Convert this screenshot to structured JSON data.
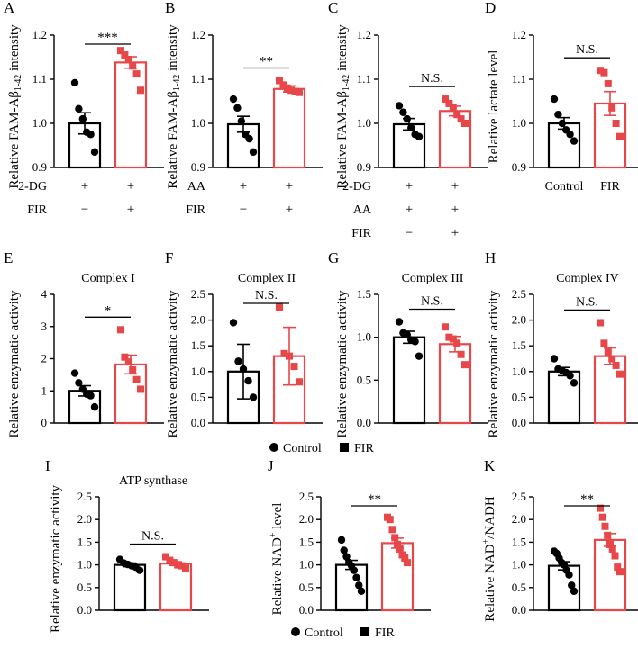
{
  "colors": {
    "control": "#000000",
    "fir": "#e8474a"
  },
  "legend": {
    "control": "Control",
    "fir": "FIR"
  },
  "chart_data": [
    {
      "type": "bar",
      "label": "A",
      "title": "",
      "ylabel": "Relative FAM-Aβ1-42 intensity",
      "ylabel_main": "Relative FAM-Aβ",
      "ylabel_sub": "1-42",
      "ylabel_tail": " intensity",
      "ylim": [
        0.9,
        1.2
      ],
      "yticks": [
        "0.9",
        "1.0",
        "1.1",
        "1.2"
      ],
      "significance": "***",
      "treatments": [
        {
          "name": "2-DG",
          "values": [
            "+",
            "+"
          ]
        },
        {
          "name": "FIR",
          "values": [
            "−",
            "+"
          ]
        }
      ],
      "series": [
        {
          "name": "Control",
          "mean": 1.0,
          "sem": 0.024,
          "points": [
            1.092,
            1.033,
            1.01,
            0.98,
            0.975,
            0.935
          ]
        },
        {
          "name": "FIR",
          "mean": 1.138,
          "sem": 0.013,
          "points": [
            1.165,
            1.155,
            1.145,
            1.13,
            1.112,
            1.075
          ]
        }
      ]
    },
    {
      "type": "bar",
      "label": "B",
      "title": "",
      "ylabel": "Relative FAM-Aβ1-42 intensity",
      "ylabel_main": "Relative FAM-Aβ",
      "ylabel_sub": "1-42",
      "ylabel_tail": " intensity",
      "ylim": [
        0.9,
        1.2
      ],
      "yticks": [
        "0.9",
        "1.0",
        "1.1",
        "1.2"
      ],
      "significance": "**",
      "treatments": [
        {
          "name": "AA",
          "values": [
            "+",
            "+"
          ]
        },
        {
          "name": "FIR",
          "values": [
            "−",
            "+"
          ]
        }
      ],
      "series": [
        {
          "name": "Control",
          "mean": 0.998,
          "sem": 0.018,
          "points": [
            1.055,
            1.035,
            1.005,
            0.975,
            0.965,
            0.935
          ]
        },
        {
          "name": "FIR",
          "mean": 1.078,
          "sem": 0.007,
          "points": [
            1.097,
            1.087,
            1.08,
            1.075,
            1.072,
            1.07
          ]
        }
      ]
    },
    {
      "type": "bar",
      "label": "C",
      "title": "",
      "ylabel": "Relative FAM-Aβ1-42 intensity",
      "ylabel_main": "Relative FAM-Aβ",
      "ylabel_sub": "1-42",
      "ylabel_tail": " intensity",
      "ylim": [
        0.9,
        1.2
      ],
      "yticks": [
        "0.9",
        "1.0",
        "1.1",
        "1.2"
      ],
      "significance": "N.S.",
      "treatments": [
        {
          "name": "2-DG",
          "values": [
            "+",
            "+"
          ]
        },
        {
          "name": "AA",
          "values": [
            "+",
            "+"
          ]
        },
        {
          "name": "FIR",
          "values": [
            "−",
            "+"
          ]
        }
      ],
      "series": [
        {
          "name": "Control",
          "mean": 0.998,
          "sem": 0.013,
          "points": [
            1.04,
            1.025,
            1.01,
            0.99,
            0.975,
            0.97
          ]
        },
        {
          "name": "FIR",
          "mean": 1.028,
          "sem": 0.011,
          "points": [
            1.055,
            1.045,
            1.035,
            1.02,
            1.01,
            1.0
          ]
        }
      ]
    },
    {
      "type": "bar",
      "label": "D",
      "title": "",
      "ylabel": "Relative lactate level",
      "ylim": [
        0.9,
        1.2
      ],
      "yticks": [
        "0.9",
        "1.0",
        "1.1",
        "1.2"
      ],
      "significance": "N.S.",
      "categories": [
        "Control",
        "FIR"
      ],
      "series": [
        {
          "name": "Control",
          "mean": 1.0,
          "sem": 0.013,
          "points": [
            1.055,
            1.02,
            1.0,
            0.985,
            0.975,
            0.96
          ]
        },
        {
          "name": "FIR",
          "mean": 1.045,
          "sem": 0.027,
          "points": [
            1.12,
            1.115,
            1.09,
            1.035,
            1.0,
            0.97
          ]
        }
      ]
    },
    {
      "type": "bar",
      "label": "E",
      "title": "Complex I",
      "ylabel": "Relative enzymatic activity",
      "ylim": [
        0,
        4
      ],
      "yticks": [
        "0",
        "1",
        "2",
        "3",
        "4"
      ],
      "significance": "*",
      "series": [
        {
          "name": "Control",
          "mean": 1.0,
          "sem": 0.16,
          "points": [
            1.55,
            1.25,
            1.05,
            0.9,
            0.85,
            0.5
          ]
        },
        {
          "name": "FIR",
          "mean": 1.82,
          "sem": 0.29,
          "points": [
            2.9,
            2.05,
            1.9,
            1.65,
            1.35,
            1.05
          ]
        }
      ]
    },
    {
      "type": "bar",
      "label": "F",
      "title": "Complex II",
      "ylabel": "Relative enzymatic activity",
      "ylim": [
        0,
        2.5
      ],
      "yticks": [
        "0.0",
        "0.5",
        "1.0",
        "1.5",
        "2.0",
        "2.5"
      ],
      "significance": "N.S.",
      "series": [
        {
          "name": "Control",
          "mean": 1.0,
          "sem": 0.53,
          "points": [
            1.95,
            1.2,
            1.05,
            0.82,
            0.5
          ]
        },
        {
          "name": "FIR",
          "mean": 1.3,
          "sem": 0.56,
          "points": [
            2.25,
            1.35,
            1.3,
            1.1,
            0.8
          ]
        }
      ]
    },
    {
      "type": "bar",
      "label": "G",
      "title": "Complex III",
      "ylabel": "Relative enzymatic activity",
      "ylim": [
        0,
        1.5
      ],
      "yticks": [
        "0.0",
        "0.5",
        "1.0",
        "1.5"
      ],
      "significance": "N.S.",
      "series": [
        {
          "name": "Control",
          "mean": 1.0,
          "sem": 0.07,
          "points": [
            1.18,
            1.05,
            1.03,
            0.97,
            0.95,
            0.78
          ]
        },
        {
          "name": "FIR",
          "mean": 0.92,
          "sem": 0.09,
          "points": [
            1.12,
            1.0,
            0.98,
            0.93,
            0.8,
            0.68
          ]
        }
      ]
    },
    {
      "type": "bar",
      "label": "H",
      "title": "Complex IV",
      "ylabel": "Relative enzymatic activity",
      "ylim": [
        0,
        2.5
      ],
      "yticks": [
        "0.0",
        "0.5",
        "1.0",
        "1.5",
        "2.0",
        "2.5"
      ],
      "significance": "N.S.",
      "series": [
        {
          "name": "Control",
          "mean": 1.0,
          "sem": 0.08,
          "points": [
            1.25,
            1.05,
            1.02,
            0.98,
            0.92,
            0.78
          ]
        },
        {
          "name": "FIR",
          "mean": 1.3,
          "sem": 0.16,
          "points": [
            1.95,
            1.55,
            1.38,
            1.25,
            1.12,
            0.95
          ]
        }
      ]
    },
    {
      "type": "bar",
      "label": "I",
      "title": "ATP synthase",
      "ylabel": "Relative enzymatic activity",
      "ylim": [
        0,
        2.5
      ],
      "yticks": [
        "0.0",
        "0.5",
        "1.0",
        "1.5",
        "2.0",
        "2.5"
      ],
      "significance": "N.S.",
      "series": [
        {
          "name": "Control",
          "mean": 1.0,
          "sem": 0.04,
          "points": [
            1.12,
            1.04,
            1.01,
            0.98,
            0.95,
            0.88
          ]
        },
        {
          "name": "FIR",
          "mean": 1.03,
          "sem": 0.04,
          "points": [
            1.18,
            1.1,
            1.05,
            1.0,
            0.98,
            0.93
          ]
        }
      ]
    },
    {
      "type": "bar",
      "label": "J",
      "title": "",
      "ylabel": "Relative NAD+ level",
      "ylabel_main": "Relative NAD",
      "ylabel_sup": "+",
      "ylabel_tail": " level",
      "ylim": [
        0,
        2.5
      ],
      "yticks": [
        "0.0",
        "0.5",
        "1.0",
        "1.5",
        "2.0",
        "2.5"
      ],
      "significance": "**",
      "series": [
        {
          "name": "Control",
          "mean": 1.0,
          "sem": 0.1,
          "points": [
            1.55,
            1.32,
            1.18,
            1.05,
            0.98,
            0.88,
            0.72,
            0.55,
            0.42
          ]
        },
        {
          "name": "FIR",
          "mean": 1.48,
          "sem": 0.11,
          "points": [
            2.05,
            2.0,
            1.78,
            1.6,
            1.45,
            1.35,
            1.22,
            1.15,
            1.05
          ]
        }
      ]
    },
    {
      "type": "bar",
      "label": "K",
      "title": "",
      "ylabel": "Relative NAD+/NADH",
      "ylabel_main": "Relative NAD",
      "ylabel_sup": "+",
      "ylabel_tail": "/NADH",
      "ylim": [
        0,
        2.5
      ],
      "yticks": [
        "0.0",
        "0.5",
        "1.0",
        "1.5",
        "2.0",
        "2.5"
      ],
      "significance": "**",
      "series": [
        {
          "name": "Control",
          "mean": 0.98,
          "sem": 0.09,
          "points": [
            1.3,
            1.25,
            1.15,
            1.05,
            1.0,
            0.88,
            0.78,
            0.55,
            0.42
          ]
        },
        {
          "name": "FIR",
          "mean": 1.55,
          "sem": 0.14,
          "points": [
            2.25,
            2.05,
            1.85,
            1.65,
            1.45,
            1.35,
            1.2,
            0.95,
            0.85
          ]
        }
      ]
    }
  ]
}
